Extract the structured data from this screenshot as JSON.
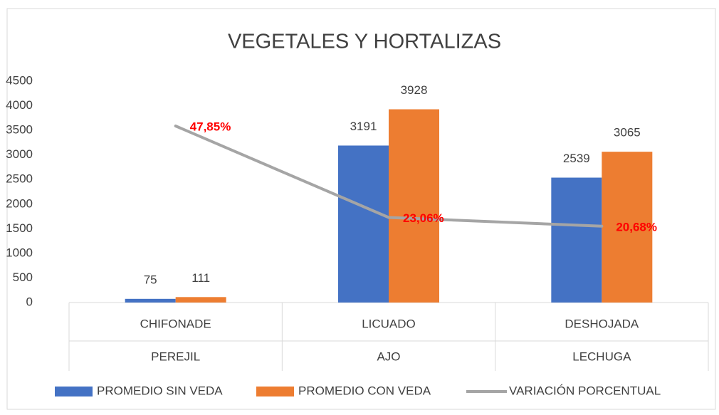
{
  "chart_data": {
    "type": "bar_line",
    "title": "VEGETALES Y HORTALIZAS",
    "categories": [
      "CHIFONADE",
      "LICUADO",
      "DESHOJADA"
    ],
    "category_groups": [
      "PEREJIL",
      "AJO",
      "LECHUGA"
    ],
    "series": [
      {
        "name": "PROMEDIO SIN VEDA",
        "color": "#4472c4",
        "type": "bar",
        "values": [
          75,
          3191,
          2539
        ]
      },
      {
        "name": "PROMEDIO CON VEDA",
        "color": "#ed7d31",
        "type": "bar",
        "values": [
          111,
          3928,
          3065
        ]
      },
      {
        "name": "VARIACIÓN PORCENTUAL",
        "color": "#a5a5a5",
        "type": "line",
        "axis": "y2",
        "values": [
          47.85,
          23.06,
          20.68
        ],
        "value_labels": [
          "47,85%",
          "23,06%",
          "20,68%"
        ],
        "label_color": "#ff0000"
      }
    ],
    "ylim": [
      0,
      4500
    ],
    "yticks": [
      0,
      500,
      1000,
      1500,
      2000,
      2500,
      3000,
      3500,
      4000,
      4500
    ],
    "y2lim": [
      0,
      60
    ],
    "grid": false,
    "legend": "bottom"
  }
}
